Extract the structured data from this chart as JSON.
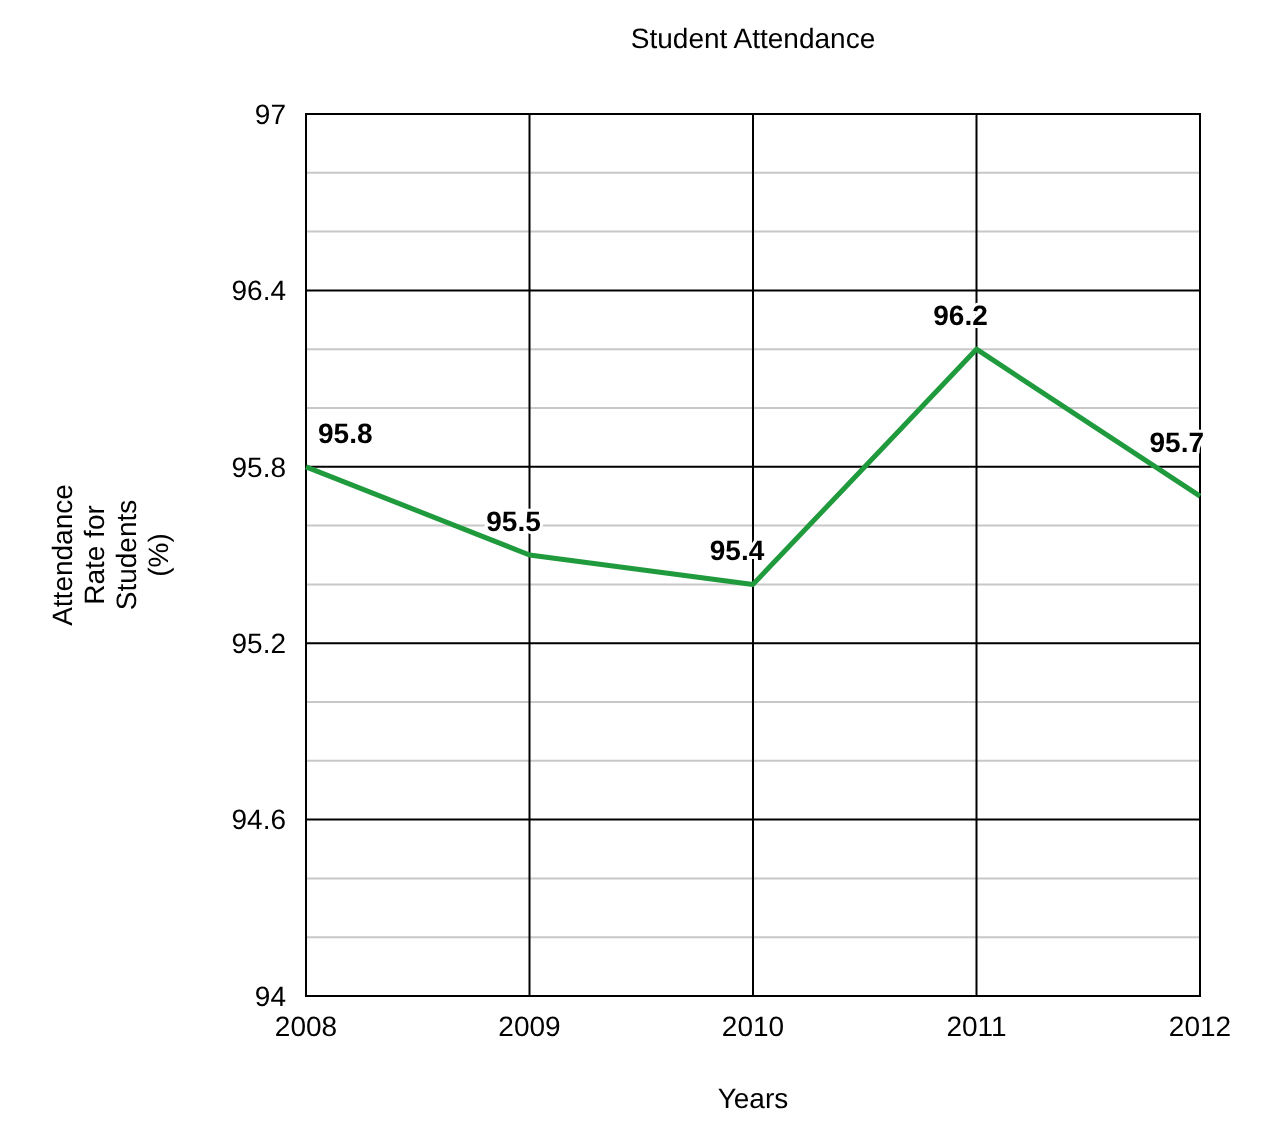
{
  "chart_data": {
    "type": "line",
    "title": "Student Attendance",
    "xlabel": "Years",
    "ylabel": "Attendance Rate for Students (%)",
    "x": [
      2008,
      2009,
      2010,
      2011,
      2012
    ],
    "series": [
      {
        "color": "#1f9a3c",
        "values": [
          95.8,
          95.5,
          95.4,
          96.2,
          95.7
        ]
      }
    ],
    "xlim": [
      2008,
      2012
    ],
    "xticks": [
      2008,
      2009,
      2010,
      2011,
      2012
    ],
    "ylim": [
      94,
      97
    ],
    "yticks": [
      94,
      {
        "value": 94.2,
        "label": null
      },
      {
        "value": 94.4,
        "label": null
      },
      94.6,
      {
        "value": 94.8,
        "label": null
      },
      {
        "value": 95,
        "label": null
      },
      95.2,
      {
        "value": 95.4,
        "label": null
      },
      {
        "value": 95.6,
        "label": null
      },
      95.8,
      {
        "value": 96,
        "label": null
      },
      {
        "value": 96.2,
        "label": null
      },
      96.4,
      {
        "value": 96.6,
        "label": null
      },
      {
        "value": 96.8,
        "label": null
      },
      97
    ],
    "grid": true,
    "data_labels": true,
    "marker": "none",
    "line_style": "solid"
  }
}
